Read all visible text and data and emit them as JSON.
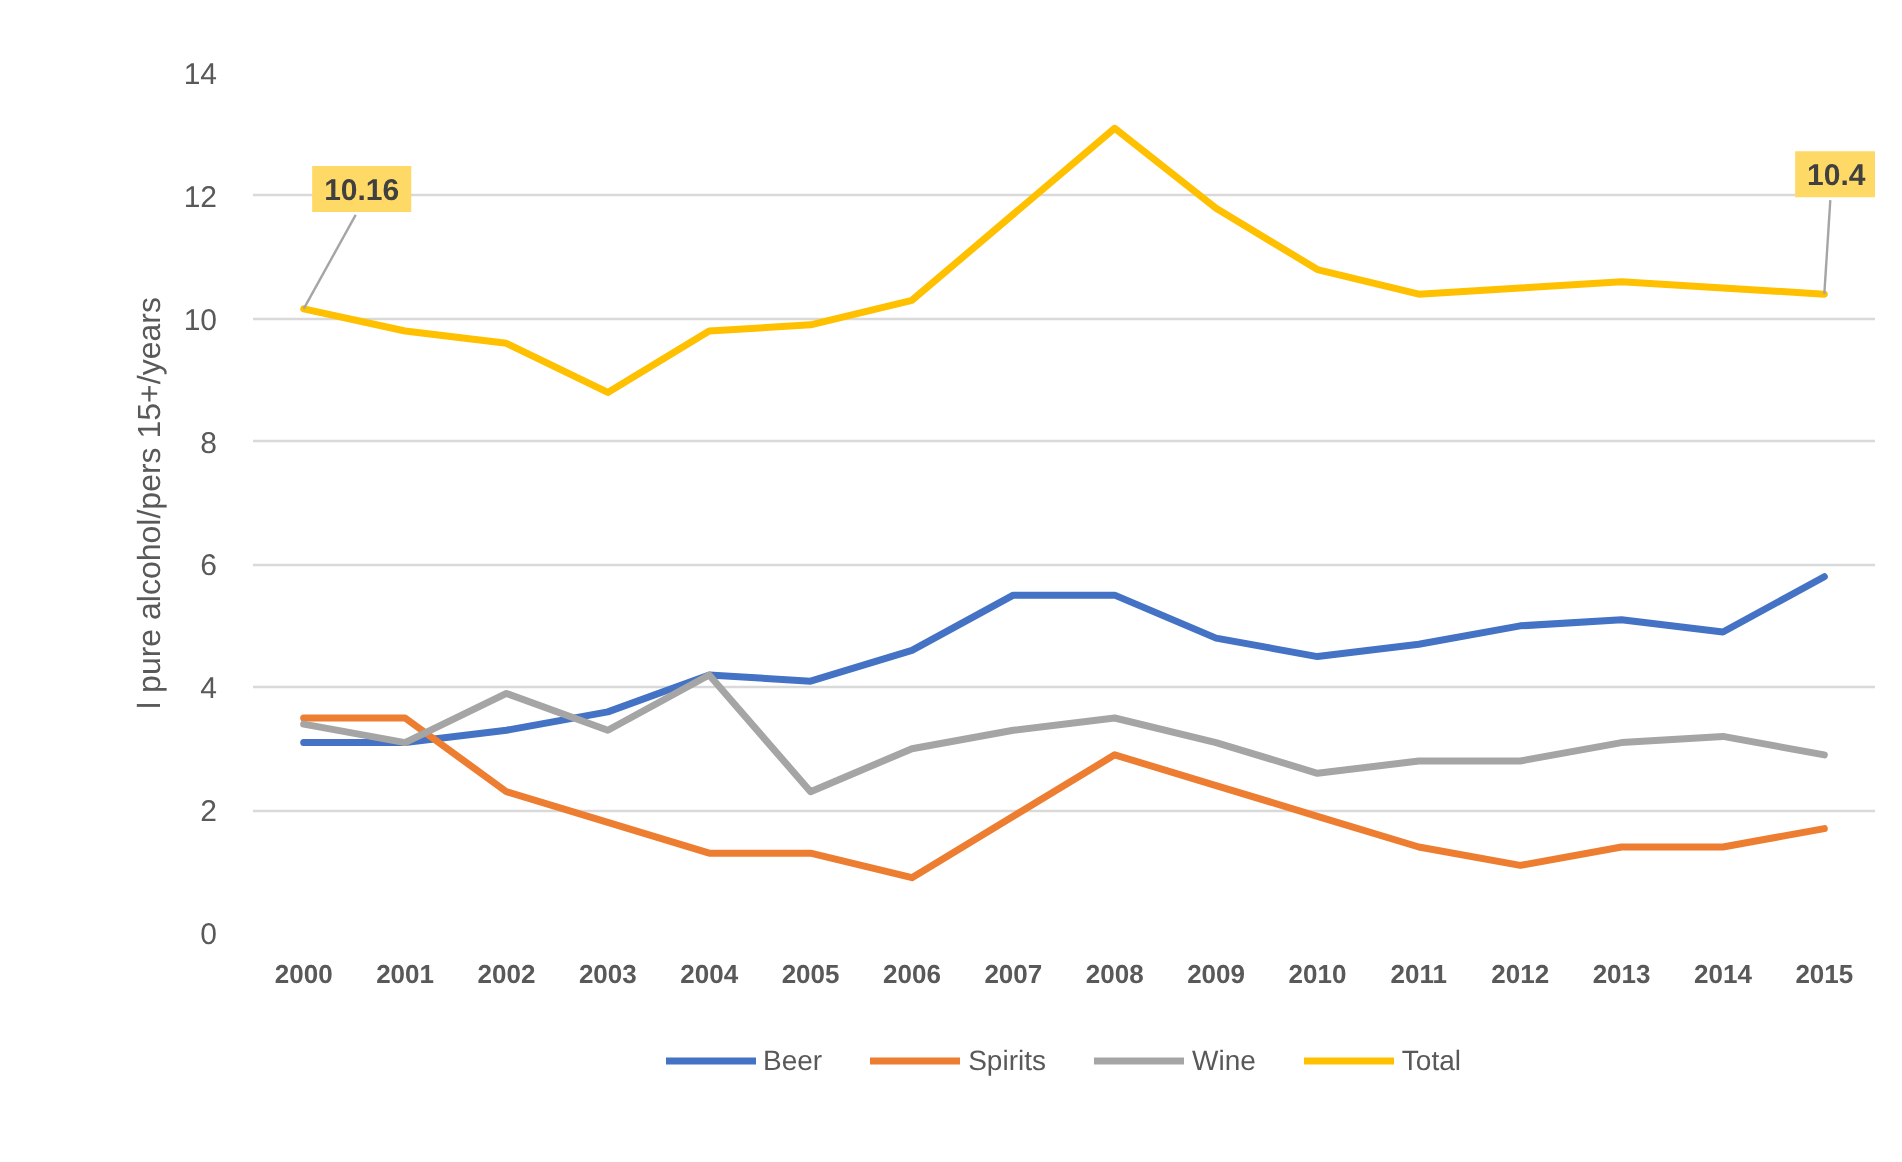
{
  "chart_data": {
    "type": "line",
    "ylabel": "l pure alcohol/pers 15+/years",
    "categories": [
      "2000",
      "2001",
      "2002",
      "2003",
      "2004",
      "2005",
      "2006",
      "2007",
      "2008",
      "2009",
      "2010",
      "2011",
      "2012",
      "2013",
      "2014",
      "2015"
    ],
    "ylim": [
      0,
      14
    ],
    "yticks": [
      0,
      2,
      4,
      6,
      8,
      10,
      12,
      14
    ],
    "grid": "y",
    "legend": "bottom",
    "line_style": "solid",
    "series": [
      {
        "name": "Beer",
        "color": "#4472c4",
        "values": [
          3.1,
          3.1,
          3.3,
          3.6,
          4.2,
          4.1,
          4.6,
          5.5,
          5.5,
          4.8,
          4.5,
          4.7,
          5.0,
          5.1,
          4.9,
          5.8
        ]
      },
      {
        "name": "Spirits",
        "color": "#ed7d31",
        "values": [
          3.5,
          3.5,
          2.3,
          1.8,
          1.3,
          1.3,
          0.9,
          1.9,
          2.9,
          2.4,
          1.9,
          1.4,
          1.1,
          1.4,
          1.4,
          1.7
        ]
      },
      {
        "name": "Wine",
        "color": "#a5a5a5",
        "values": [
          3.4,
          3.1,
          3.9,
          3.3,
          4.2,
          2.3,
          3.0,
          3.3,
          3.5,
          3.1,
          2.6,
          2.8,
          2.8,
          3.1,
          3.2,
          2.9
        ]
      },
      {
        "name": "Total",
        "color": "#ffc000",
        "values": [
          10.16,
          9.8,
          9.6,
          8.8,
          9.8,
          9.9,
          10.3,
          11.7,
          13.1,
          11.8,
          10.8,
          10.4,
          10.5,
          10.6,
          10.5,
          10.4
        ]
      }
    ],
    "annotations": [
      {
        "text": "10.16",
        "x": "2000",
        "y": 10.16
      },
      {
        "text": "10.4",
        "x": "2015",
        "y": 10.4
      }
    ]
  }
}
